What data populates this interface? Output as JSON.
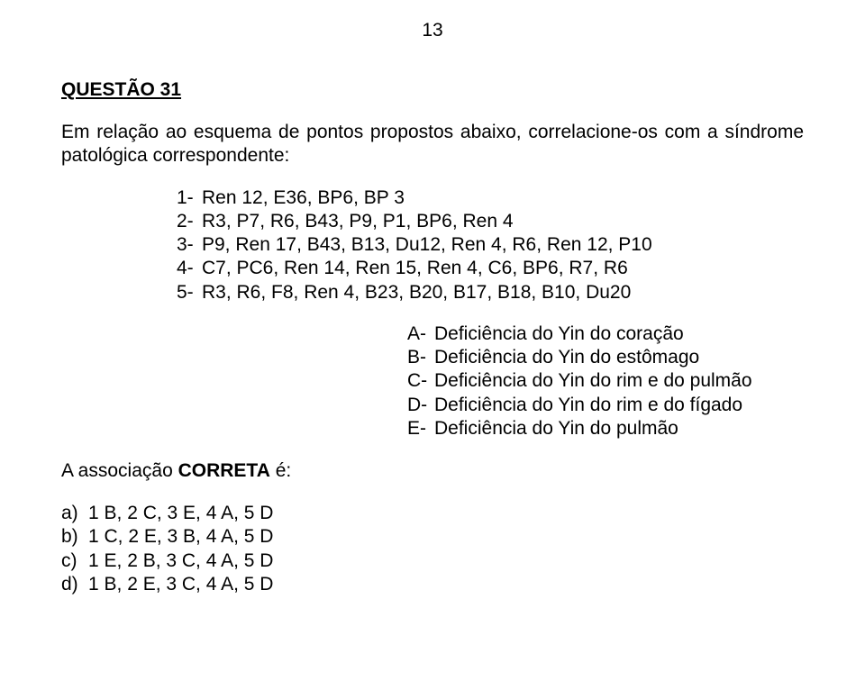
{
  "page_number": "13",
  "question_title": "QUESTÃO 31",
  "intro": "Em relação ao esquema de pontos propostos abaixo, correlacione-os com a síndrome patológica correspondente:",
  "numbered": [
    {
      "num": "1-",
      "text": "Ren 12, E36, BP6, BP 3"
    },
    {
      "num": "2-",
      "text": "R3, P7, R6, B43, P9, P1, BP6, Ren 4"
    },
    {
      "num": "3-",
      "text": "P9, Ren 17, B43, B13, Du12, Ren 4, R6, Ren 12, P10"
    },
    {
      "num": "4-",
      "text": "C7, PC6, Ren 14, Ren 15, Ren 4, C6, BP6, R7, R6"
    },
    {
      "num": "5-",
      "text": "R3, R6, F8, Ren 4, B23, B20, B17, B18, B10, Du20"
    }
  ],
  "lettered": [
    {
      "let": "A-",
      "text": "Deficiência do Yin do coração"
    },
    {
      "let": "B-",
      "text": "Deficiência do Yin do estômago"
    },
    {
      "let": "C-",
      "text": "Deficiência do Yin do rim e do pulmão"
    },
    {
      "let": "D-",
      "text": "Deficiência do Yin do rim e do fígado"
    },
    {
      "let": "E-",
      "text": "Deficiência do Yin do pulmão"
    }
  ],
  "association_prefix": "A associação ",
  "association_bold": "CORRETA",
  "association_suffix": " é:",
  "answers": [
    {
      "let": "a)",
      "text": "1 B, 2 C, 3 E, 4 A, 5 D"
    },
    {
      "let": "b)",
      "text": "1 C, 2 E, 3 B, 4 A, 5 D"
    },
    {
      "let": "c)",
      "text": "1 E, 2 B, 3 C, 4 A, 5 D"
    },
    {
      "let": "d)",
      "text": "1 B, 2 E, 3 C, 4 A, 5 D"
    }
  ]
}
